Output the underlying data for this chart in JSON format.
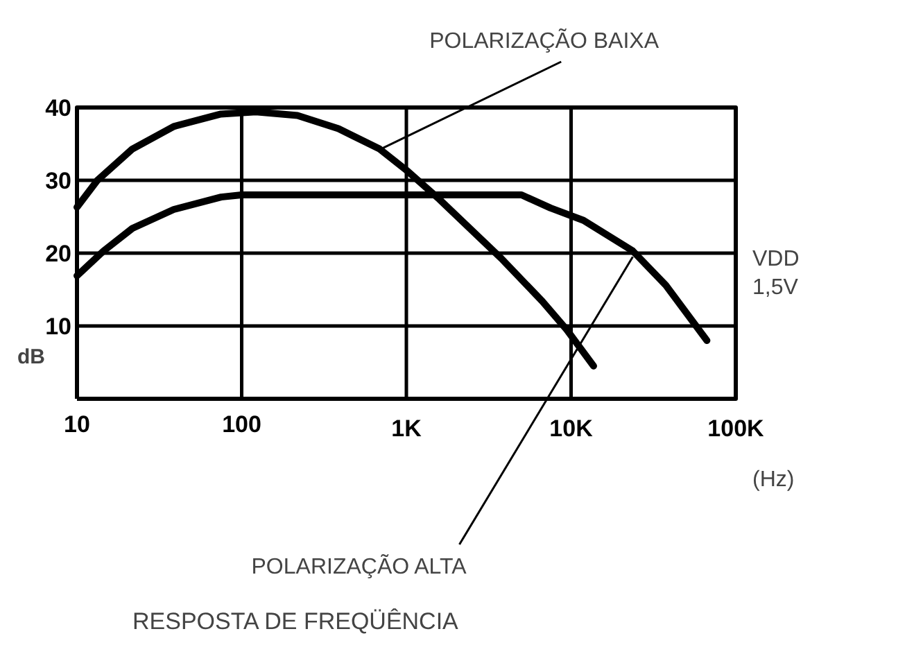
{
  "chart_data": {
    "type": "line",
    "title": "RESPOSTA DE FREQÜÊNCIA",
    "xlabel": "(Hz)",
    "ylabel": "dB",
    "log": "x",
    "xlim": [
      10,
      100000
    ],
    "ylim": [
      0,
      40
    ],
    "xticks": [
      10,
      100,
      {
        "value": 1000,
        "label": "1K"
      },
      {
        "value": 10000,
        "label": "10K"
      },
      {
        "value": 100000,
        "label": "100K"
      }
    ],
    "yticks": [
      {
        "value": 0,
        "label": null
      },
      10,
      20,
      30,
      40
    ],
    "grid": true,
    "marker": "none",
    "line_style": "solid",
    "series": [
      {
        "color": "#000000",
        "x": [
          10,
          13.3,
          21.7,
          38.7,
          74.8,
          122,
          218,
          387,
          688,
          1000,
          1585,
          3760,
          6680,
          9400,
          13700
        ],
        "values": [
          26.3,
          30,
          34.3,
          37.4,
          39.1,
          39.4,
          38.9,
          37.1,
          34.3,
          31.4,
          27.4,
          19.3,
          13.4,
          9.5,
          4.5
        ]
      },
      {
        "color": "#000000",
        "x": [
          10,
          14.5,
          21.7,
          38.7,
          75,
          100,
          1000,
          5000,
          7500,
          11900,
          23700,
          37600,
          66800
        ],
        "values": [
          16.9,
          20.3,
          23.4,
          26,
          27.7,
          28,
          28,
          28,
          26.2,
          24.5,
          20.3,
          15.6,
          8
        ]
      }
    ],
    "annotations": [
      {
        "text": "POLARIZAÇÃO BAIXA",
        "x": 700,
        "y": 34.3
      },
      {
        "text": "POLARIZAÇÃO ALTA",
        "x": 23700,
        "y": 19.5
      },
      "VDD\n1,5V"
    ]
  }
}
